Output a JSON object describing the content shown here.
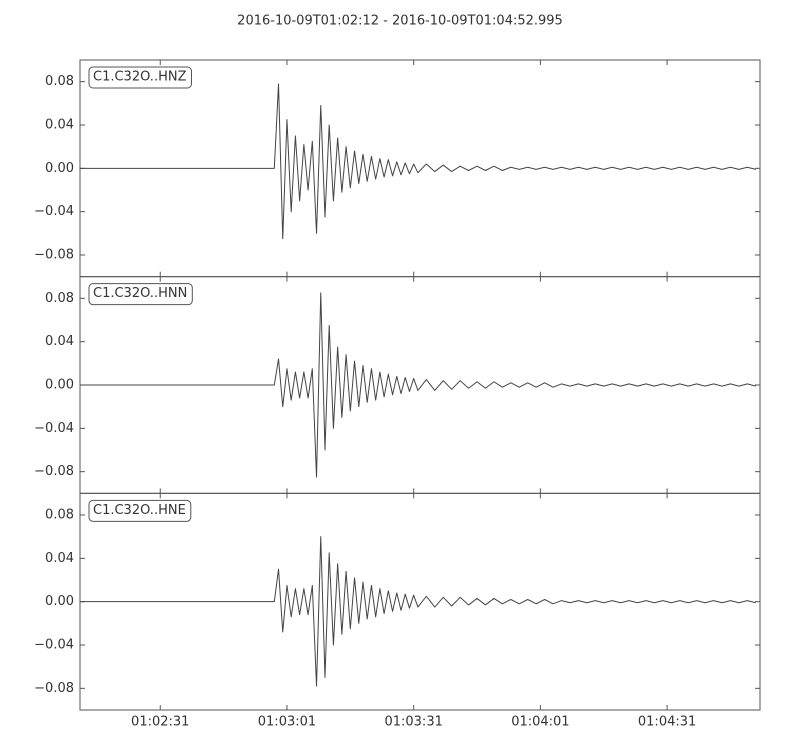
{
  "chart_data": {
    "type": "line",
    "title": "2016-10-09T01:02:12  -  2016-10-09T01:04:52.995",
    "x": [
      "01:02:12",
      "01:02:58",
      "01:02:59",
      "01:03:00",
      "01:03:01",
      "01:03:02",
      "01:03:03",
      "01:03:04",
      "01:03:05",
      "01:03:06",
      "01:03:07",
      "01:03:08",
      "01:03:09",
      "01:03:10",
      "01:03:11",
      "01:03:12",
      "01:03:13",
      "01:03:14",
      "01:03:15",
      "01:03:16",
      "01:03:17",
      "01:03:18",
      "01:03:19",
      "01:03:20",
      "01:03:21",
      "01:03:22",
      "01:03:23",
      "01:03:24",
      "01:03:25",
      "01:03:26",
      "01:03:27",
      "01:03:28",
      "01:03:29",
      "01:03:30",
      "01:03:31",
      "01:03:32",
      "01:03:34",
      "01:03:36",
      "01:03:38",
      "01:03:40",
      "01:03:42",
      "01:03:44",
      "01:03:46",
      "01:03:48",
      "01:03:50",
      "01:03:52",
      "01:03:54",
      "01:03:56",
      "01:03:58",
      "01:04:00",
      "01:04:02",
      "01:04:04",
      "01:04:06",
      "01:04:08",
      "01:04:10",
      "01:04:12",
      "01:04:14",
      "01:04:16",
      "01:04:18",
      "01:04:20",
      "01:04:22",
      "01:04:24",
      "01:04:26",
      "01:04:28",
      "01:04:30",
      "01:04:32",
      "01:04:34",
      "01:04:36",
      "01:04:38",
      "01:04:40",
      "01:04:42",
      "01:04:44",
      "01:04:46",
      "01:04:48",
      "01:04:50",
      "01:04:52"
    ],
    "xlim": [
      "01:02:12",
      "01:04:52.995"
    ],
    "xticks": [
      "01:02:31",
      "01:03:01",
      "01:03:31",
      "01:04:01",
      "01:04:31"
    ],
    "ylim": [
      -0.1,
      0.1
    ],
    "yticks": [
      0.08,
      0.04,
      {
        "value": 0,
        "label": "0.00"
      },
      {
        "value": -0.04,
        "label": "−0.04"
      },
      {
        "value": -0.08,
        "label": "−0.08"
      }
    ],
    "series": [
      {
        "name": "C1.C32O..HNZ",
        "color": "#444444",
        "values": [
          0,
          0,
          0.078,
          -0.065,
          0.045,
          -0.04,
          0.03,
          -0.03,
          0.022,
          -0.02,
          0.025,
          -0.06,
          0.058,
          -0.045,
          0.04,
          -0.03,
          0.028,
          -0.022,
          0.02,
          -0.018,
          0.016,
          -0.014,
          0.013,
          -0.012,
          0.011,
          -0.01,
          0.009,
          -0.008,
          0.008,
          -0.007,
          0.006,
          -0.006,
          0.005,
          -0.005,
          0.004,
          -0.004,
          0.004,
          -0.003,
          0.003,
          -0.003,
          0.002,
          -0.002,
          0.002,
          -0.002,
          0.002,
          -0.002,
          0.001,
          -0.001,
          0.001,
          -0.001,
          0.001,
          -0.001,
          0.001,
          -0.001,
          0.001,
          -0.001,
          0.001,
          -0.001,
          0.001,
          -0.001,
          0.001,
          -0.001,
          0.001,
          -0.001,
          0.001,
          -0.001,
          0.001,
          -0.001,
          0.001,
          -0.001,
          0.001,
          -0.001,
          0.001,
          -0.001,
          0.001,
          -0.001
        ]
      },
      {
        "name": "C1.C32O..HNN",
        "color": "#444444",
        "values": [
          0,
          0,
          0.024,
          -0.02,
          0.015,
          -0.014,
          0.012,
          -0.012,
          0.012,
          -0.012,
          0.015,
          -0.085,
          0.085,
          -0.06,
          0.055,
          -0.04,
          0.035,
          -0.03,
          0.028,
          -0.024,
          0.022,
          -0.02,
          0.018,
          -0.016,
          0.015,
          -0.014,
          0.012,
          -0.011,
          0.01,
          -0.009,
          0.008,
          -0.008,
          0.007,
          -0.006,
          0.006,
          -0.005,
          0.005,
          -0.005,
          0.004,
          -0.004,
          0.004,
          -0.003,
          0.003,
          -0.003,
          0.003,
          -0.002,
          0.002,
          -0.002,
          0.002,
          -0.002,
          0.002,
          -0.002,
          0.001,
          -0.001,
          0.001,
          -0.001,
          0.001,
          -0.001,
          0.001,
          -0.001,
          0.001,
          -0.001,
          0.001,
          -0.001,
          0.001,
          -0.001,
          0.001,
          -0.001,
          0.001,
          -0.001,
          0.001,
          -0.001,
          0.001,
          -0.001,
          0.001,
          -0.001
        ]
      },
      {
        "name": "C1.C32O..HNE",
        "color": "#444444",
        "values": [
          0,
          0,
          0.03,
          -0.028,
          0.015,
          -0.014,
          0.012,
          -0.012,
          0.012,
          -0.012,
          0.015,
          -0.078,
          0.06,
          -0.07,
          0.045,
          -0.04,
          0.035,
          -0.03,
          0.028,
          -0.025,
          0.022,
          -0.02,
          0.018,
          -0.016,
          0.015,
          -0.014,
          0.012,
          -0.011,
          0.01,
          -0.009,
          0.008,
          -0.008,
          0.007,
          -0.006,
          0.006,
          -0.005,
          0.005,
          -0.005,
          0.004,
          -0.004,
          0.004,
          -0.003,
          0.003,
          -0.003,
          0.003,
          -0.002,
          0.002,
          -0.002,
          0.002,
          -0.002,
          0.002,
          -0.002,
          0.001,
          -0.001,
          0.001,
          -0.001,
          0.001,
          -0.001,
          0.001,
          -0.001,
          0.001,
          -0.001,
          0.001,
          -0.001,
          0.001,
          -0.001,
          0.001,
          -0.001,
          0.001,
          -0.001,
          0.001,
          -0.001,
          0.001,
          -0.001,
          0.001,
          -0.001
        ]
      }
    ]
  }
}
